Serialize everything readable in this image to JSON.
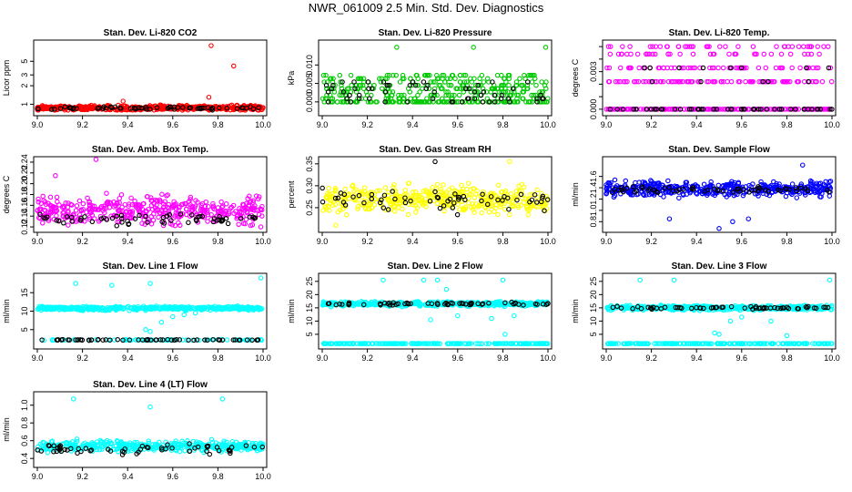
{
  "title": "NWR_061009  2.5 Min. Std. Dev. Diagnostics",
  "chart_data": [
    {
      "type": "scatter",
      "title": "Stan. Dev. Li-820 CO2",
      "ylabel": "Licor ppm",
      "yscale": "log",
      "xlim": [
        9.0,
        10.0
      ],
      "ylim": [
        0.72,
        10
      ],
      "xticks": [
        "9.0",
        "9.2",
        "9.4",
        "9.6",
        "9.8",
        "10.0"
      ],
      "yticks": [
        {
          "value": 1,
          "label": "1"
        },
        {
          "value": 2,
          "label": "2"
        },
        {
          "value": 3,
          "label": "3"
        },
        {
          "value": 5,
          "label": "5"
        }
      ],
      "series": [
        {
          "name": "all",
          "color": "#ff0000",
          "n": 420,
          "base": 0.87,
          "spread": 0.08,
          "low": 0.8,
          "outliers": [
            [
              9.77,
              9.0
            ],
            [
              9.87,
              4.2
            ],
            [
              9.76,
              1.3
            ],
            [
              9.38,
              1.12
            ]
          ]
        },
        {
          "name": "selected",
          "color": "#000000",
          "n": 60,
          "base": 0.86,
          "spread": 0.05,
          "low": 0.8,
          "outliers": []
        }
      ]
    },
    {
      "type": "scatter",
      "title": "Stan. Dev. Li-820 Pressure",
      "ylabel": "kPa",
      "xlim": [
        9.0,
        10.0
      ],
      "ylim": [
        -0.003,
        0.016
      ],
      "xticks": [
        "9.0",
        "9.2",
        "9.4",
        "9.6",
        "9.8",
        "10.0"
      ],
      "yticks": [
        {
          "value": 0.0,
          "label": "0.000"
        },
        {
          "value": 0.005,
          "label": "0.005"
        },
        {
          "value": 0.01,
          "label": "0.010"
        }
      ],
      "series": [
        {
          "name": "all",
          "color": "#00c800",
          "n": 420,
          "base": 0.0,
          "spread": 0.0035,
          "low": 0.0,
          "levels": [
            0.0,
            0.0,
            0.0,
            0.0009,
            0.0018,
            0.0027,
            0.0036,
            0.0045,
            0.0054,
            0.0063,
            0.0072
          ],
          "outliers": [
            [
              9.33,
              0.0148
            ],
            [
              9.67,
              0.0148
            ],
            [
              9.99,
              0.0148
            ]
          ]
        },
        {
          "name": "selected",
          "color": "#000000",
          "n": 60,
          "base": 0.0,
          "spread": 0.003,
          "low": 0.0,
          "levels": [
            0.0,
            0.0009,
            0.0018,
            0.0027,
            0.0036,
            0.0045,
            0.0054
          ],
          "outliers": []
        }
      ]
    },
    {
      "type": "scatter",
      "title": "Stan. Dev. Li-820 Temp.",
      "ylabel": "degrees C",
      "xlim": [
        9.0,
        10.0
      ],
      "ylim": [
        -0.0003,
        0.0053
      ],
      "xticks": [
        "9.0",
        "9.2",
        "9.4",
        "9.6",
        "9.8",
        "10.0"
      ],
      "yticks": [
        {
          "value": 0.0,
          "label": "0.000"
        },
        {
          "value": 0.001,
          "label": ""
        },
        {
          "value": 0.002,
          "label": ""
        },
        {
          "value": 0.003,
          "label": "0.003"
        },
        {
          "value": 0.004,
          "label": ""
        },
        {
          "value": 0.005,
          "label": ""
        }
      ],
      "series": [
        {
          "name": "all",
          "color": "#ff00ff",
          "n": 420,
          "base": 0.0,
          "spread": 0.001,
          "low": 0.0,
          "levels": [
            0.0,
            0.0,
            0.0,
            0.0,
            0.0,
            0.0,
            0.0022,
            0.0022,
            0.0022,
            0.0033,
            0.0033,
            0.0044,
            0.005
          ],
          "outliers": []
        },
        {
          "name": "selected",
          "color": "#000000",
          "n": 60,
          "base": 0.0,
          "spread": 0.001,
          "low": 0.0,
          "levels": [
            0.0,
            0.0,
            0.0,
            0.0,
            0.0,
            0.0022,
            0.0033
          ],
          "outliers": []
        }
      ]
    },
    {
      "type": "scatter",
      "title": "Stan. Dev. Amb. Box Temp.",
      "ylabel": "degrees C",
      "xlim": [
        9.0,
        10.0
      ],
      "ylim": [
        0.115,
        0.245
      ],
      "xticks": [
        "9.0",
        "9.2",
        "9.4",
        "9.6",
        "9.8",
        "10.0"
      ],
      "yticks": [
        {
          "value": 0.12,
          "label": "0.12"
        },
        {
          "value": 0.14,
          "label": "0.14"
        },
        {
          "value": 0.16,
          "label": "0.16"
        },
        {
          "value": 0.18,
          "label": "0.18"
        },
        {
          "value": 0.2,
          "label": "0.20"
        },
        {
          "value": 0.22,
          "label": "0.22"
        },
        {
          "value": 0.24,
          "label": "0.24"
        }
      ],
      "series": [
        {
          "name": "all",
          "color": "#ff00ff",
          "n": 420,
          "base": 0.15,
          "spread": 0.025,
          "low": 0.12,
          "outliers": [
            [
              9.26,
              0.245
            ],
            [
              9.08,
              0.215
            ],
            [
              9.99,
              0.12
            ]
          ]
        },
        {
          "name": "selected",
          "color": "#000000",
          "n": 60,
          "base": 0.135,
          "spread": 0.01,
          "low": 0.12,
          "outliers": []
        }
      ]
    },
    {
      "type": "scatter",
      "title": "Stan. Dev. Gas Stream RH",
      "ylabel": "percent",
      "xlim": [
        9.0,
        10.0
      ],
      "ylim": [
        0.2,
        0.36
      ],
      "xticks": [
        "9.0",
        "9.2",
        "9.4",
        "9.6",
        "9.8",
        "10.0"
      ],
      "yticks": [
        {
          "value": 0.25,
          "label": "0.25"
        },
        {
          "value": 0.3,
          "label": "0.30"
        },
        {
          "value": 0.35,
          "label": "0.35"
        }
      ],
      "series": [
        {
          "name": "all",
          "color": "#ffff00",
          "n": 420,
          "base": 0.27,
          "spread": 0.03,
          "low": 0.21,
          "outliers": [
            [
              9.83,
              0.355
            ],
            [
              9.06,
              0.21
            ]
          ]
        },
        {
          "name": "selected",
          "color": "#000000",
          "n": 60,
          "base": 0.265,
          "spread": 0.025,
          "low": 0.23,
          "outliers": [
            [
              9.5,
              0.355
            ]
          ]
        }
      ]
    },
    {
      "type": "scatter",
      "title": "Stan. Dev. Sample Flow",
      "ylabel": "ml/min",
      "xlim": [
        9.0,
        10.0
      ],
      "ylim": [
        0.66,
        1.9
      ],
      "xticks": [
        "9.0",
        "9.2",
        "9.4",
        "9.6",
        "9.8",
        "10.0"
      ],
      "yticks": [
        {
          "value": 0.8,
          "label": "0.8"
        },
        {
          "value": 1.0,
          "label": "1.0"
        },
        {
          "value": 1.2,
          "label": "1.2"
        },
        {
          "value": 1.4,
          "label": "1.4"
        },
        {
          "value": 1.6,
          "label": "1.6"
        }
      ],
      "series": [
        {
          "name": "all",
          "color": "#0000ff",
          "n": 420,
          "base": 1.38,
          "spread": 0.12,
          "low": 1.1,
          "outliers": [
            [
              9.87,
              1.8
            ],
            [
              9.5,
              0.68
            ],
            [
              9.28,
              0.85
            ],
            [
              9.56,
              0.8
            ],
            [
              9.63,
              0.85
            ]
          ]
        },
        {
          "name": "selected",
          "color": "#000000",
          "n": 60,
          "base": 1.36,
          "spread": 0.06,
          "low": 1.2,
          "outliers": []
        }
      ]
    },
    {
      "type": "scatter",
      "title": "Stan. Dev. Line 1 Flow",
      "ylabel": "ml/min",
      "xlim": [
        9.0,
        10.0
      ],
      "ylim": [
        0.5,
        19.5
      ],
      "xticks": [
        "9.0",
        "9.2",
        "9.4",
        "9.6",
        "9.8",
        "10.0"
      ],
      "yticks": [
        {
          "value": 5,
          "label": "5"
        },
        {
          "value": 10,
          "label": "10"
        },
        {
          "value": 15,
          "label": "15"
        }
      ],
      "series": [
        {
          "name": "all",
          "color": "#00ffff",
          "n": 420,
          "base": 10.8,
          "spread": 0.5,
          "low": 10.0,
          "outliers": [
            [
              9.17,
              17.5
            ],
            [
              9.33,
              17.0
            ],
            [
              9.5,
              17.5
            ],
            [
              9.99,
              19.0
            ],
            [
              9.48,
              5.0
            ],
            [
              9.5,
              4.5
            ],
            [
              9.55,
              7.0
            ],
            [
              9.6,
              8.5
            ],
            [
              9.65,
              9.0
            ],
            [
              9.7,
              9.5
            ]
          ]
        },
        {
          "name": "lower",
          "color": "#00ffff",
          "n": 80,
          "base": 2.2,
          "spread": 0.1,
          "low": 2.0,
          "outliers": []
        },
        {
          "name": "selected",
          "color": "#000000",
          "n": 60,
          "base": 2.2,
          "spread": 0.1,
          "low": 2.0,
          "outliers": []
        }
      ]
    },
    {
      "type": "scatter",
      "title": "Stan. Dev. Line 2 Flow",
      "ylabel": "ml/min",
      "xlim": [
        9.0,
        10.0
      ],
      "ylim": [
        0.5,
        27
      ],
      "xticks": [
        "9.0",
        "9.2",
        "9.4",
        "9.6",
        "9.8",
        "10.0"
      ],
      "yticks": [
        {
          "value": 5,
          "label": "5"
        },
        {
          "value": 10,
          "label": "10"
        },
        {
          "value": 15,
          "label": "15"
        },
        {
          "value": 20,
          "label": "20"
        },
        {
          "value": 25,
          "label": "25"
        }
      ],
      "series": [
        {
          "name": "all",
          "color": "#00ffff",
          "n": 420,
          "base": 16.5,
          "spread": 0.8,
          "low": 15.0,
          "outliers": [
            [
              9.27,
              25.5
            ],
            [
              9.45,
              25.5
            ],
            [
              9.51,
              25.5
            ],
            [
              9.55,
              22.0
            ],
            [
              9.8,
              25.5
            ],
            [
              9.81,
              5.0
            ],
            [
              9.48,
              10.5
            ],
            [
              9.6,
              12.0
            ],
            [
              9.75,
              11.0
            ],
            [
              9.85,
              12.0
            ]
          ]
        },
        {
          "name": "baseline",
          "color": "#00ffff",
          "n": 200,
          "base": 1.5,
          "spread": 0.05,
          "low": 1.4,
          "outliers": []
        },
        {
          "name": "selected",
          "color": "#000000",
          "n": 60,
          "base": 16.5,
          "spread": 0.5,
          "low": 15.5,
          "outliers": []
        }
      ]
    },
    {
      "type": "scatter",
      "title": "Stan. Dev. Line 3 Flow",
      "ylabel": "ml/min",
      "xlim": [
        9.0,
        10.0
      ],
      "ylim": [
        0.5,
        27
      ],
      "xticks": [
        "9.0",
        "9.2",
        "9.4",
        "9.6",
        "9.8",
        "10.0"
      ],
      "yticks": [
        {
          "value": 5,
          "label": "5"
        },
        {
          "value": 10,
          "label": "10"
        },
        {
          "value": 15,
          "label": "15"
        },
        {
          "value": 20,
          "label": "20"
        },
        {
          "value": 25,
          "label": "25"
        }
      ],
      "series": [
        {
          "name": "all",
          "color": "#00ffff",
          "n": 420,
          "base": 15.0,
          "spread": 0.8,
          "low": 13.5,
          "outliers": [
            [
              9.15,
              25.5
            ],
            [
              9.3,
              25.5
            ],
            [
              9.99,
              25.5
            ],
            [
              9.5,
              5.0
            ],
            [
              9.48,
              5.5
            ],
            [
              9.8,
              4.5
            ],
            [
              9.55,
              10.0
            ],
            [
              9.6,
              11.5
            ],
            [
              9.73,
              10.0
            ]
          ]
        },
        {
          "name": "baseline",
          "color": "#00ffff",
          "n": 200,
          "base": 1.5,
          "spread": 0.05,
          "low": 1.4,
          "outliers": []
        },
        {
          "name": "selected",
          "color": "#000000",
          "n": 60,
          "base": 15.0,
          "spread": 0.5,
          "low": 14.0,
          "outliers": []
        }
      ]
    },
    {
      "type": "scatter",
      "title": "Stan. Dev. Line 4 (LT) Flow",
      "ylabel": "ml/min",
      "xlim": [
        9.0,
        10.0
      ],
      "ylim": [
        0.33,
        1.12
      ],
      "xticks": [
        "9.0",
        "9.2",
        "9.4",
        "9.6",
        "9.8",
        "10.0"
      ],
      "yticks": [
        {
          "value": 0.4,
          "label": "0.4"
        },
        {
          "value": 0.6,
          "label": "0.6"
        },
        {
          "value": 0.8,
          "label": "0.8"
        },
        {
          "value": 1.0,
          "label": "1.0"
        }
      ],
      "series": [
        {
          "name": "all",
          "color": "#00ffff",
          "n": 420,
          "base": 0.54,
          "spread": 0.06,
          "low": 0.42,
          "outliers": [
            [
              9.16,
              1.07
            ],
            [
              9.82,
              1.07
            ],
            [
              9.5,
              0.98
            ]
          ]
        },
        {
          "name": "selected",
          "color": "#000000",
          "n": 60,
          "base": 0.5,
          "spread": 0.06,
          "low": 0.37,
          "outliers": []
        }
      ]
    }
  ]
}
